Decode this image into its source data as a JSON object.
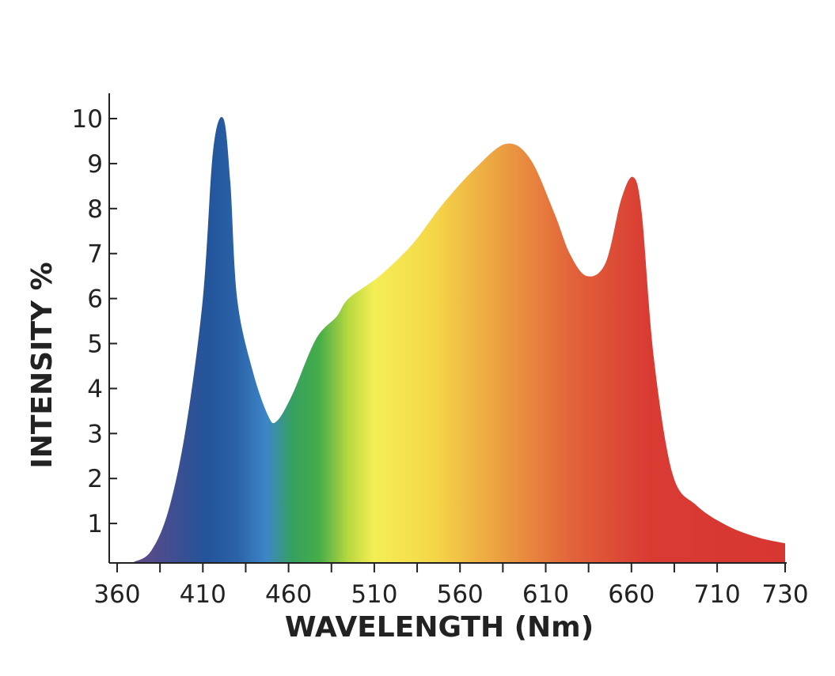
{
  "chart_data": {
    "type": "area",
    "x_label": "WAVELENGTH (Nm)",
    "y_label": "INTENSITY %",
    "x": [
      360,
      370,
      380,
      390,
      400,
      410,
      416,
      422,
      426,
      430,
      439,
      448,
      453,
      462,
      476,
      488,
      495,
      513,
      532,
      550,
      569,
      587,
      601,
      615,
      624,
      634,
      645,
      654,
      661,
      666,
      673,
      684,
      698,
      713,
      722,
      730
    ],
    "values": [
      0.1,
      0.15,
      0.4,
      1.3,
      3.1,
      6.0,
      9.3,
      10.0,
      8.6,
      6.0,
      4.4,
      3.4,
      3.27,
      3.85,
      5.1,
      5.6,
      6.0,
      6.5,
      7.2,
      8.1,
      8.9,
      9.44,
      9.1,
      7.9,
      7.0,
      6.5,
      6.8,
      8.2,
      8.7,
      7.9,
      4.7,
      2.1,
      1.4,
      0.95,
      0.69,
      0.56
    ],
    "color_stops": [
      {
        "value": 375,
        "color": "#5a4a8a"
      },
      {
        "value": 395,
        "color": "#3c4f92"
      },
      {
        "value": 412,
        "color": "#23549a"
      },
      {
        "value": 430,
        "color": "#2a62a8"
      },
      {
        "value": 447,
        "color": "#3d86c8"
      },
      {
        "value": 462,
        "color": "#36a060"
      },
      {
        "value": 478,
        "color": "#46ad48"
      },
      {
        "value": 495,
        "color": "#b8d840"
      },
      {
        "value": 510,
        "color": "#f5ee55"
      },
      {
        "value": 545,
        "color": "#f5d648"
      },
      {
        "value": 590,
        "color": "#ea9640"
      },
      {
        "value": 625,
        "color": "#e2633a"
      },
      {
        "value": 670,
        "color": "#d93b33"
      },
      {
        "value": 730,
        "color": "#d83632"
      }
    ],
    "xlim": [
      355,
      730
    ],
    "ylim": [
      0.1,
      10.6
    ],
    "xticks": [
      360,
      410,
      460,
      510,
      560,
      610,
      660,
      710,
      730
    ],
    "xminorticks": [
      385,
      435,
      485,
      535,
      585,
      635,
      685
    ],
    "yticks": [
      1,
      2,
      3,
      4,
      5,
      6,
      7,
      8,
      9,
      10
    ]
  }
}
